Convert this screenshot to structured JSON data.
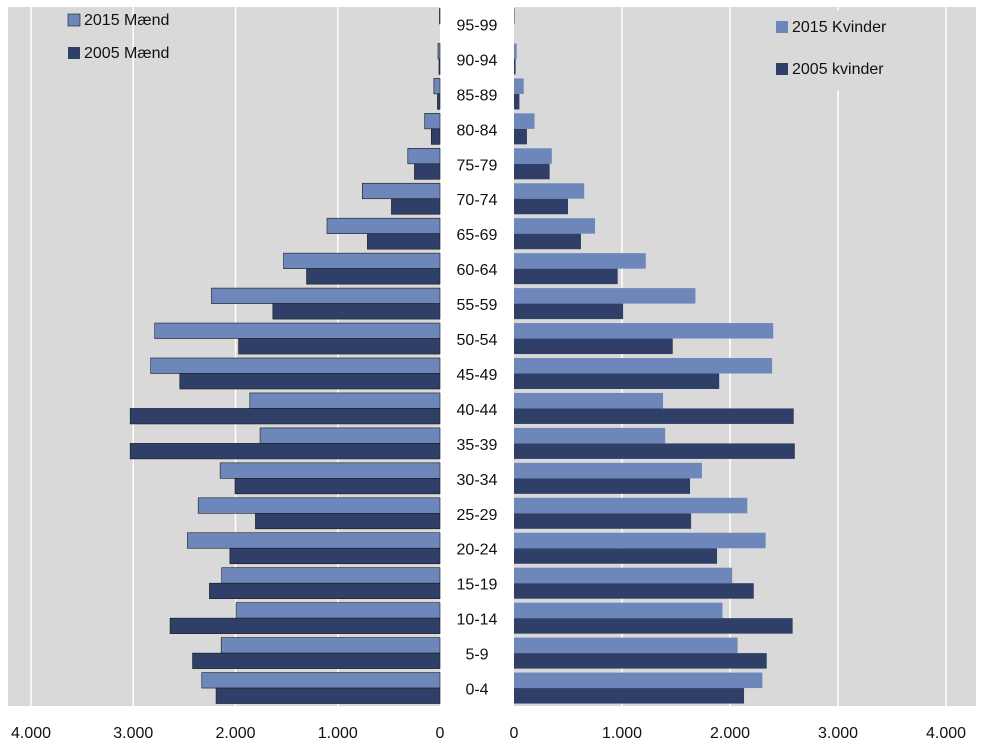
{
  "chart_data": {
    "type": "bar",
    "orientation": "horizontal",
    "layout": "population-pyramid",
    "categories": [
      "0-4",
      "5-9",
      "10-14",
      "15-19",
      "20-24",
      "25-29",
      "30-34",
      "35-39",
      "40-44",
      "45-49",
      "50-54",
      "55-59",
      "60-64",
      "65-69",
      "70-74",
      "75-79",
      "80-84",
      "85-89",
      "90-94",
      "95-99"
    ],
    "series": [
      {
        "name": "2015 Mænd",
        "side": "left",
        "color": "#6e87bb",
        "values": [
          2330,
          2140,
          1995,
          2135,
          2470,
          2365,
          2150,
          1760,
          1860,
          2830,
          2790,
          2235,
          1530,
          1105,
          760,
          315,
          150,
          60,
          20,
          5
        ]
      },
      {
        "name": "2005 Mænd",
        "side": "left",
        "color": "#2f3f67",
        "values": [
          2190,
          2420,
          2640,
          2255,
          2055,
          1805,
          2005,
          3030,
          3030,
          2545,
          1970,
          1635,
          1305,
          710,
          475,
          250,
          85,
          25,
          10,
          0
        ]
      },
      {
        "name": "2015 Kvinder",
        "side": "right",
        "color": "#6e87bb",
        "values": [
          2300,
          2070,
          1930,
          2020,
          2330,
          2160,
          1740,
          1400,
          1380,
          2390,
          2400,
          1680,
          1220,
          750,
          650,
          350,
          190,
          90,
          25,
          8
        ]
      },
      {
        "name": "2005 kvinder",
        "side": "right",
        "color": "#2f3f67",
        "values": [
          2130,
          2340,
          2580,
          2220,
          1880,
          1640,
          1630,
          2600,
          2590,
          1900,
          1470,
          1010,
          960,
          620,
          500,
          330,
          120,
          50,
          15,
          0
        ]
      }
    ],
    "left_ticks": [
      "4.000",
      "3.000",
      "2.000",
      "1.000",
      "0"
    ],
    "right_ticks": [
      "0",
      "1.000",
      "2.000",
      "3.000",
      "4.000"
    ],
    "xlim": [
      0,
      4000
    ],
    "grid": true,
    "legend_placement": "top-left (men) and top-right (women)",
    "colors": {
      "plot_bg": "#d9d9d9",
      "grid": "#ffffff",
      "light_series": "#6e87bb",
      "dark_series": "#2f3f67"
    }
  }
}
